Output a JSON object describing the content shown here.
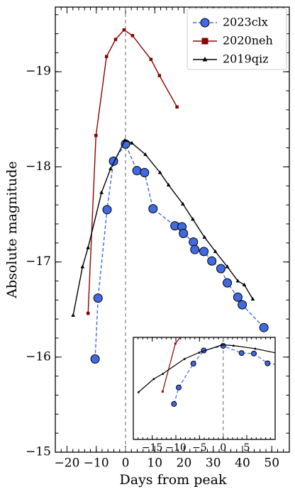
{
  "chart_data": {
    "type": "line",
    "x_label": "Days from peak",
    "y_label": "Absolute magnitude",
    "xlim": [
      -24,
      56
    ],
    "ylim": [
      -15,
      -19.68
    ],
    "xticks": [
      {
        "value": -20,
        "label": "−20"
      },
      {
        "value": -10,
        "label": "−10"
      },
      0,
      10,
      20,
      30,
      40,
      50
    ],
    "yticks": [
      {
        "value": -15,
        "label": "−15"
      },
      {
        "value": -16,
        "label": "−16"
      },
      {
        "value": -17,
        "label": "−17"
      },
      {
        "value": -18,
        "label": "−18"
      },
      {
        "value": -19,
        "label": "−19"
      }
    ],
    "vline": 0,
    "legend": "upper right",
    "series": [
      {
        "name": "2023clx",
        "color": "#4169e1",
        "marker": "circle",
        "dashed": true,
        "x": [
          -10.4,
          -9.4,
          -6.3,
          -4.1,
          0,
          3.9,
          6.5,
          9.4,
          16.9,
          19.3,
          19.8,
          23.2,
          23.7,
          26.8,
          29.5,
          32.6,
          34.8,
          38.4,
          39.9,
          47.3
        ],
        "values": [
          -15.98,
          -16.62,
          -17.55,
          -18.06,
          -18.24,
          -17.96,
          -17.94,
          -17.56,
          -17.38,
          -17.37,
          -17.3,
          -17.21,
          -17.13,
          -17.11,
          -17.01,
          -16.93,
          -16.78,
          -16.63,
          -16.55,
          -16.31
        ]
      },
      {
        "name": "2020neh",
        "color": "#8b0000",
        "marker": "square",
        "dashed": false,
        "x": [
          -12.8,
          -10.1,
          -6.5,
          -3.4,
          -0.5,
          2.4,
          8.7,
          11.6,
          17.6
        ],
        "values": [
          -16.46,
          -18.33,
          -19.16,
          -19.34,
          -19.44,
          -19.38,
          -19.13,
          -18.96,
          -18.63
        ]
      },
      {
        "name": "2019qiz",
        "color": "#000000",
        "marker": "triangle",
        "dashed": false,
        "x": [
          -17.9,
          -14.7,
          -12.8,
          -8.2,
          -5.1,
          -0.2,
          2.2,
          6.8,
          11.8,
          14.7,
          19.6,
          23,
          27,
          30.7,
          34.8,
          38.4,
          40.6,
          43.5
        ],
        "values": [
          -16.44,
          -16.95,
          -17.15,
          -17.73,
          -17.98,
          -18.28,
          -18.25,
          -18.13,
          -17.94,
          -17.81,
          -17.61,
          -17.45,
          -17.26,
          -17.11,
          -16.95,
          -16.8,
          -16.76,
          -16.61
        ]
      }
    ],
    "inset": {
      "xlim": [
        -19,
        11
      ],
      "ylim": [
        -14.6,
        -18.57
      ],
      "xticks": [
        {
          "value": -15,
          "label": "−15"
        },
        {
          "value": -10,
          "label": "−10"
        },
        {
          "value": -5,
          "label": "−5"
        },
        0,
        5
      ]
    }
  }
}
